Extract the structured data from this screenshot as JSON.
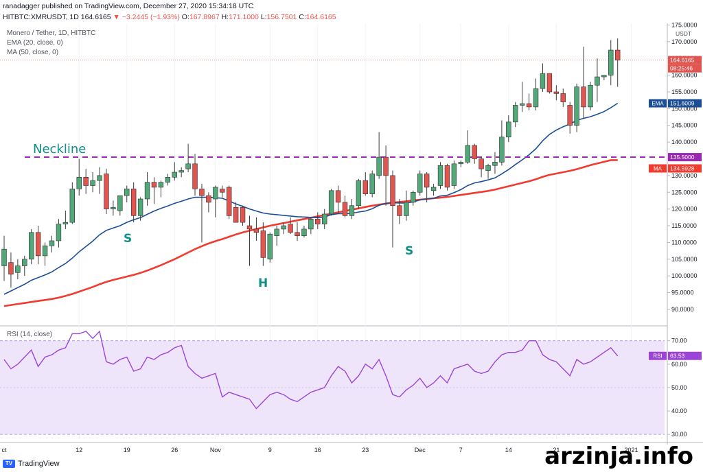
{
  "header": {
    "publisher": "ranadagger published on TradingView.com, December 27, 2020 15:34:18 UTC",
    "symbol": "HITBTC:XMRUSDT, 1D",
    "last": "164.6165",
    "change": "▼ −3.2445 (−1.93%)",
    "o_label": "O:",
    "o_val": "167.8967",
    "h_label": "H:",
    "h_val": "171.1000",
    "l_label": "L:",
    "l_val": "156.7501",
    "c_label": "C:",
    "c_val": "164.6165"
  },
  "legend": {
    "title": "Monero / Tether, 1D, HITBTC",
    "ema": "EMA (20, close, 0)",
    "ma": "MA (50, close, 0)",
    "rsi": "RSI (14, close)"
  },
  "annotations": {
    "neckline": "Neckline",
    "left_shoulder": "S",
    "head": "H",
    "right_shoulder": "S"
  },
  "badges": {
    "currency": "USDT",
    "price": "164.6165",
    "countdown": "08:25:46",
    "ema_label": "EMA",
    "ema_value": "151.6009",
    "neck_value": "135.5000",
    "ma_label": "MA",
    "ma_value": "134.5928",
    "rsi_label": "RSI",
    "rsi_value": "63.53"
  },
  "footer": {
    "logo": "TradingView",
    "watermark": "arzinja.info"
  },
  "colors": {
    "up": "#53a87a",
    "down": "#e0554f",
    "ema": "#1c4e96",
    "ma": "#f23a2e",
    "neckline": "#9c27b0",
    "rsi": "#9c44d8",
    "rsi_band": "#eee5fb",
    "annotation": "#0f8f8a"
  },
  "chart_data": {
    "type": "candlestick",
    "price_axis": {
      "ticks": [
        "175.0000",
        "170.0000",
        "165.0000",
        "160.0000",
        "155.0000",
        "150.0000",
        "145.0000",
        "140.0000",
        "135.0000",
        "130.0000",
        "125.0000",
        "120.0000",
        "115.0000",
        "110.0000",
        "105.0000",
        "100.0000",
        "95.0000",
        "90.0000"
      ],
      "range": [
        86.5,
        175.5
      ]
    },
    "time_axis": [
      "ct",
      "12",
      "19",
      "26",
      "Nov",
      "9",
      "16",
      "23",
      "Dec",
      "7",
      "14",
      "21",
      "2021"
    ],
    "neckline": 135.5,
    "candles": [
      {
        "o": 103.0,
        "h": 112.0,
        "l": 98.5,
        "c": 108.0
      },
      {
        "o": 104.0,
        "h": 107.0,
        "l": 96.5,
        "c": 100.5
      },
      {
        "o": 101.0,
        "h": 105.0,
        "l": 99.0,
        "c": 103.0
      },
      {
        "o": 103.0,
        "h": 106.0,
        "l": 100.0,
        "c": 105.0
      },
      {
        "o": 105.0,
        "h": 114.0,
        "l": 103.5,
        "c": 113.0
      },
      {
        "o": 113.0,
        "h": 115.0,
        "l": 103.5,
        "c": 106.0
      },
      {
        "o": 106.0,
        "h": 110.0,
        "l": 103.0,
        "c": 109.0
      },
      {
        "o": 109.0,
        "h": 112.0,
        "l": 107.0,
        "c": 110.5
      },
      {
        "o": 110.5,
        "h": 117.0,
        "l": 108.5,
        "c": 115.5
      },
      {
        "o": 115.5,
        "h": 119.5,
        "l": 114.0,
        "c": 116.0
      },
      {
        "o": 116.0,
        "h": 128.0,
        "l": 115.5,
        "c": 126.0
      },
      {
        "o": 126.0,
        "h": 135.0,
        "l": 124.0,
        "c": 129.5
      },
      {
        "o": 129.5,
        "h": 132.0,
        "l": 124.5,
        "c": 127.0
      },
      {
        "o": 127.0,
        "h": 131.0,
        "l": 125.0,
        "c": 128.5
      },
      {
        "o": 128.5,
        "h": 132.5,
        "l": 124.5,
        "c": 130.0
      },
      {
        "o": 130.5,
        "h": 132.0,
        "l": 118.5,
        "c": 120.0
      },
      {
        "o": 120.0,
        "h": 122.5,
        "l": 118.0,
        "c": 120.5
      },
      {
        "o": 119.5,
        "h": 124.0,
        "l": 118.0,
        "c": 124.0
      },
      {
        "o": 124.0,
        "h": 127.0,
        "l": 122.0,
        "c": 126.0
      },
      {
        "o": 126.0,
        "h": 128.0,
        "l": 116.0,
        "c": 118.0
      },
      {
        "o": 118.0,
        "h": 123.5,
        "l": 116.5,
        "c": 123.0
      },
      {
        "o": 123.0,
        "h": 131.0,
        "l": 121.0,
        "c": 128.0
      },
      {
        "o": 128.0,
        "h": 129.5,
        "l": 121.5,
        "c": 126.5
      },
      {
        "o": 126.5,
        "h": 128.5,
        "l": 123.5,
        "c": 128.0
      },
      {
        "o": 128.0,
        "h": 130.5,
        "l": 127.0,
        "c": 129.5
      },
      {
        "o": 129.5,
        "h": 134.0,
        "l": 128.5,
        "c": 131.0
      },
      {
        "o": 131.0,
        "h": 132.5,
        "l": 129.5,
        "c": 131.5
      },
      {
        "o": 132.0,
        "h": 139.5,
        "l": 131.0,
        "c": 133.5
      },
      {
        "o": 133.5,
        "h": 136.5,
        "l": 124.0,
        "c": 126.0
      },
      {
        "o": 126.0,
        "h": 127.5,
        "l": 110.0,
        "c": 124.0
      },
      {
        "o": 124.0,
        "h": 125.0,
        "l": 119.0,
        "c": 122.0
      },
      {
        "o": 123.0,
        "h": 127.0,
        "l": 117.5,
        "c": 126.5
      },
      {
        "o": 126.0,
        "h": 127.0,
        "l": 123.5,
        "c": 125.0
      },
      {
        "o": 126.5,
        "h": 127.0,
        "l": 117.0,
        "c": 118.0
      },
      {
        "o": 120.5,
        "h": 122.0,
        "l": 116.5,
        "c": 116.0
      },
      {
        "o": 120.5,
        "h": 121.0,
        "l": 115.0,
        "c": 116.0
      },
      {
        "o": 115.0,
        "h": 118.0,
        "l": 103.0,
        "c": 114.0
      },
      {
        "o": 114.0,
        "h": 117.5,
        "l": 110.5,
        "c": 113.0
      },
      {
        "o": 113.5,
        "h": 116.0,
        "l": 103.0,
        "c": 105.5
      },
      {
        "o": 105.0,
        "h": 113.0,
        "l": 104.0,
        "c": 112.5
      },
      {
        "o": 112.0,
        "h": 115.0,
        "l": 109.0,
        "c": 114.0
      },
      {
        "o": 114.0,
        "h": 116.0,
        "l": 112.5,
        "c": 115.0
      },
      {
        "o": 115.5,
        "h": 117.5,
        "l": 112.5,
        "c": 113.0
      },
      {
        "o": 113.0,
        "h": 116.0,
        "l": 110.5,
        "c": 112.0
      },
      {
        "o": 112.0,
        "h": 115.0,
        "l": 111.5,
        "c": 114.0
      },
      {
        "o": 114.0,
        "h": 117.5,
        "l": 112.5,
        "c": 117.0
      },
      {
        "o": 117.0,
        "h": 119.0,
        "l": 114.0,
        "c": 115.5
      },
      {
        "o": 115.5,
        "h": 120.0,
        "l": 114.0,
        "c": 118.5
      },
      {
        "o": 118.5,
        "h": 126.0,
        "l": 118.0,
        "c": 125.5
      },
      {
        "o": 125.5,
        "h": 127.0,
        "l": 118.5,
        "c": 122.0
      },
      {
        "o": 122.0,
        "h": 124.0,
        "l": 117.5,
        "c": 118.0
      },
      {
        "o": 118.0,
        "h": 123.0,
        "l": 117.0,
        "c": 121.0
      },
      {
        "o": 121.0,
        "h": 129.0,
        "l": 120.0,
        "c": 128.5
      },
      {
        "o": 128.5,
        "h": 131.0,
        "l": 124.0,
        "c": 124.5
      },
      {
        "o": 124.5,
        "h": 131.5,
        "l": 123.5,
        "c": 130.5
      },
      {
        "o": 130.0,
        "h": 143.0,
        "l": 129.0,
        "c": 135.5
      },
      {
        "o": 135.5,
        "h": 139.0,
        "l": 121.0,
        "c": 130.0
      },
      {
        "o": 130.0,
        "h": 131.5,
        "l": 108.5,
        "c": 121.0
      },
      {
        "o": 121.0,
        "h": 123.0,
        "l": 115.5,
        "c": 118.0
      },
      {
        "o": 118.0,
        "h": 125.5,
        "l": 116.5,
        "c": 122.0
      },
      {
        "o": 122.0,
        "h": 125.5,
        "l": 121.0,
        "c": 125.0
      },
      {
        "o": 125.0,
        "h": 131.5,
        "l": 124.0,
        "c": 130.5
      },
      {
        "o": 130.5,
        "h": 131.0,
        "l": 122.0,
        "c": 126.5
      },
      {
        "o": 125.5,
        "h": 127.5,
        "l": 124.0,
        "c": 126.5
      },
      {
        "o": 127.0,
        "h": 134.0,
        "l": 126.0,
        "c": 133.0
      },
      {
        "o": 133.0,
        "h": 133.5,
        "l": 125.5,
        "c": 126.5
      },
      {
        "o": 127.0,
        "h": 134.5,
        "l": 126.0,
        "c": 133.5
      },
      {
        "o": 133.5,
        "h": 134.5,
        "l": 132.5,
        "c": 134.0
      },
      {
        "o": 134.0,
        "h": 143.5,
        "l": 133.5,
        "c": 139.0
      },
      {
        "o": 139.0,
        "h": 139.5,
        "l": 133.5,
        "c": 135.0
      },
      {
        "o": 135.0,
        "h": 135.5,
        "l": 129.5,
        "c": 132.0
      },
      {
        "o": 131.5,
        "h": 133.5,
        "l": 129.0,
        "c": 133.0
      },
      {
        "o": 133.0,
        "h": 137.0,
        "l": 130.5,
        "c": 134.0
      },
      {
        "o": 134.0,
        "h": 146.5,
        "l": 133.0,
        "c": 141.5
      },
      {
        "o": 141.5,
        "h": 148.0,
        "l": 140.0,
        "c": 146.0
      },
      {
        "o": 146.0,
        "h": 152.0,
        "l": 144.5,
        "c": 151.0
      },
      {
        "o": 151.0,
        "h": 158.0,
        "l": 149.0,
        "c": 151.5
      },
      {
        "o": 151.5,
        "h": 154.5,
        "l": 149.5,
        "c": 150.5
      },
      {
        "o": 150.5,
        "h": 159.0,
        "l": 149.5,
        "c": 156.0
      },
      {
        "o": 156.0,
        "h": 163.5,
        "l": 155.0,
        "c": 160.5
      },
      {
        "o": 160.5,
        "h": 160.5,
        "l": 154.5,
        "c": 155.0
      },
      {
        "o": 155.0,
        "h": 157.0,
        "l": 152.5,
        "c": 154.5
      },
      {
        "o": 154.5,
        "h": 156.0,
        "l": 150.5,
        "c": 152.0
      },
      {
        "o": 151.0,
        "h": 152.0,
        "l": 142.5,
        "c": 145.0
      },
      {
        "o": 145.0,
        "h": 157.5,
        "l": 143.0,
        "c": 156.5
      },
      {
        "o": 156.5,
        "h": 168.5,
        "l": 147.0,
        "c": 150.5
      },
      {
        "o": 150.5,
        "h": 158.0,
        "l": 149.5,
        "c": 157.0
      },
      {
        "o": 157.0,
        "h": 165.0,
        "l": 152.0,
        "c": 159.5
      },
      {
        "o": 159.5,
        "h": 160.0,
        "l": 158.5,
        "c": 160.0
      },
      {
        "o": 160.0,
        "h": 170.5,
        "l": 157.0,
        "c": 167.5
      },
      {
        "o": 167.5,
        "h": 171.0,
        "l": 156.5,
        "c": 164.5
      }
    ],
    "ema20": [
      94.5,
      95.5,
      96.5,
      97.5,
      98.7,
      99.5,
      100.3,
      101.2,
      102.5,
      103.7,
      105.3,
      107.2,
      108.8,
      110.4,
      112.3,
      113.6,
      114.3,
      115.0,
      116.0,
      116.8,
      117.4,
      118.4,
      119.4,
      120.2,
      120.9,
      121.7,
      122.3,
      123.0,
      123.5,
      123.5,
      123.5,
      123.4,
      123.2,
      122.4,
      121.5,
      120.8,
      120.0,
      119.4,
      118.8,
      118.5,
      118.3,
      118.1,
      117.9,
      117.7,
      117.6,
      117.5,
      117.4,
      117.6,
      118.3,
      118.6,
      118.6,
      118.7,
      119.1,
      119.4,
      120.1,
      121.1,
      121.7,
      121.9,
      121.8,
      121.8,
      122.1,
      122.7,
      123.0,
      123.2,
      123.9,
      124.1,
      124.9,
      125.8,
      127.0,
      127.8,
      128.2,
      128.7,
      129.3,
      130.5,
      131.8,
      133.3,
      134.7,
      136.2,
      138.0,
      140.4,
      142.3,
      143.6,
      144.6,
      145.4,
      146.5,
      147.1,
      147.6,
      148.3,
      149.1,
      150.3,
      151.6
    ],
    "ma50": [
      91.0,
      91.3,
      91.6,
      91.9,
      92.2,
      92.5,
      92.8,
      93.1,
      93.5,
      94.0,
      94.6,
      95.3,
      96.0,
      96.7,
      97.5,
      98.2,
      98.8,
      99.3,
      99.8,
      100.3,
      100.9,
      101.6,
      102.4,
      103.2,
      104.1,
      105.0,
      106.0,
      107.0,
      108.0,
      108.9,
      109.7,
      110.4,
      111.0,
      111.7,
      112.4,
      113.0,
      113.5,
      114.0,
      114.5,
      115.0,
      115.4,
      115.8,
      116.2,
      116.6,
      117.0,
      117.4,
      117.8,
      118.2,
      118.6,
      119.0,
      119.4,
      119.8,
      120.2,
      120.6,
      121.0,
      121.3,
      121.6,
      121.9,
      122.1,
      122.3,
      122.6,
      122.8,
      123.0,
      123.2,
      123.4,
      123.6,
      123.9,
      124.2,
      124.5,
      124.8,
      125.1,
      125.4,
      125.8,
      126.3,
      126.8,
      127.3,
      127.8,
      128.3,
      128.9,
      129.6,
      130.2,
      130.6,
      131.0,
      131.4,
      131.9,
      132.5,
      133.1,
      133.6,
      134.1,
      134.6,
      134.6
    ],
    "rsi_axis": {
      "ticks": [
        "70.00",
        "60.00",
        "50.00",
        "40.00",
        "30.00"
      ],
      "range": [
        28,
        74
      ],
      "band": [
        30,
        70
      ]
    },
    "rsi": [
      62,
      58,
      60,
      63,
      66,
      59,
      63,
      64,
      66,
      67,
      73,
      73,
      74,
      71,
      74,
      61,
      60,
      62,
      63,
      57,
      58,
      63,
      62,
      64,
      65,
      67,
      68,
      59,
      56,
      54,
      55,
      56,
      46,
      48,
      47,
      46,
      45,
      41,
      44,
      47,
      48,
      47,
      45,
      44,
      46,
      48,
      49,
      50,
      55,
      59,
      57,
      52,
      55,
      60,
      58,
      62,
      55,
      47,
      46,
      49,
      51,
      54,
      50,
      52,
      55,
      52,
      58,
      59,
      60,
      57,
      56,
      57,
      61,
      64,
      65,
      65,
      66,
      70,
      70,
      64,
      62,
      61,
      58,
      55,
      62,
      60,
      61,
      63,
      65,
      67,
      63.5
    ]
  }
}
